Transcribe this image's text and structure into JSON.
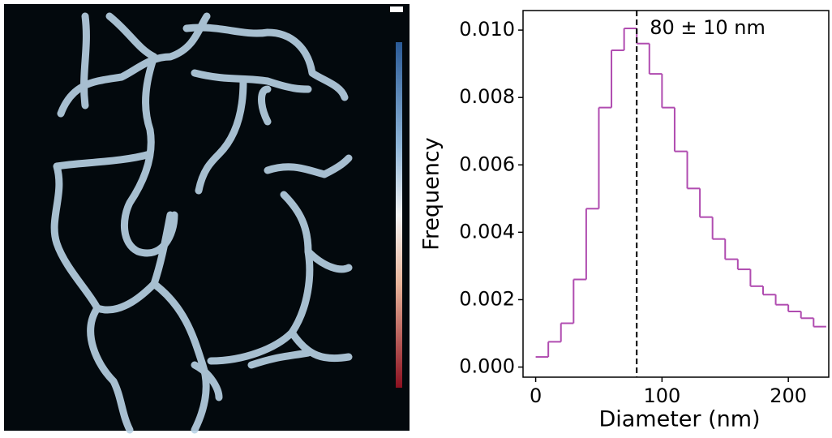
{
  "chart_data": {
    "type": "histogram",
    "xlabel": "Diameter (nm)",
    "ylabel": "Frequency",
    "bins": [
      0,
      10,
      20,
      30,
      40,
      50,
      60,
      70,
      80,
      90,
      100,
      110,
      120,
      130,
      140,
      150,
      160,
      170,
      180,
      190,
      200,
      210,
      220,
      230
    ],
    "values": [
      0.0003,
      0.00075,
      0.0013,
      0.0026,
      0.0047,
      0.0077,
      0.0094,
      0.01005,
      0.0096,
      0.0087,
      0.0077,
      0.0064,
      0.0053,
      0.00445,
      0.0038,
      0.0032,
      0.0029,
      0.0024,
      0.00215,
      0.00185,
      0.00165,
      0.00145,
      0.0012
    ],
    "color": "#b04cb0",
    "xlim": [
      -10,
      232
    ],
    "ylim": [
      -0.0003,
      0.01058
    ],
    "xticks": [
      0,
      100,
      200
    ],
    "yticks": [
      {
        "value": 0,
        "label": "0.000"
      },
      {
        "value": 0.002,
        "label": "0.002"
      },
      {
        "value": 0.004,
        "label": "0.004"
      },
      {
        "value": 0.006,
        "label": "0.006"
      },
      {
        "value": 0.008,
        "label": "0.008"
      },
      {
        "value": 0.01,
        "label": "0.010"
      }
    ],
    "annotation": {
      "text": "80 ± 10 nm",
      "x": 80
    }
  }
}
